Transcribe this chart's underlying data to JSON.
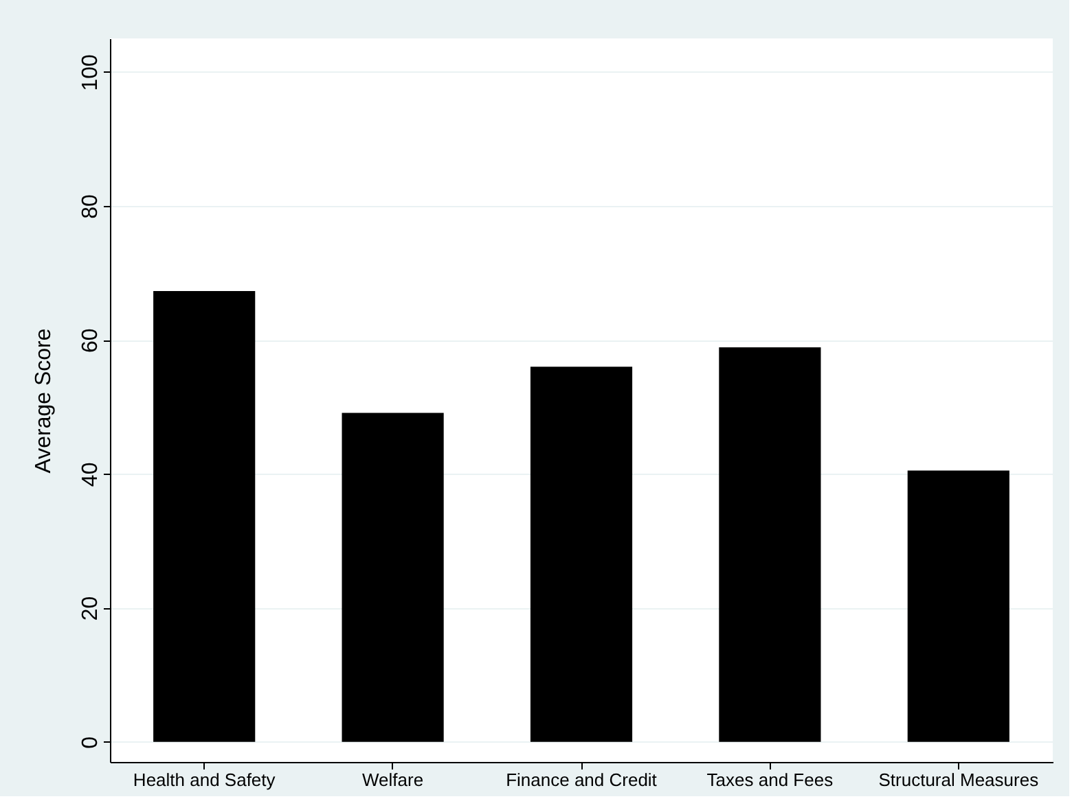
{
  "chart_data": {
    "type": "bar",
    "ylabel": "Average Score",
    "categories": [
      "Health and Safety",
      "Welfare",
      "Finance and Credit",
      "Taxes and Fees",
      "Structural Measures"
    ],
    "values": [
      67.3,
      49.1,
      56.0,
      58.9,
      40.5
    ],
    "color": "#000000",
    "ylim": [
      -3,
      105
    ],
    "yticks": [
      0,
      20,
      40,
      60,
      80,
      100
    ],
    "grid": "y"
  }
}
